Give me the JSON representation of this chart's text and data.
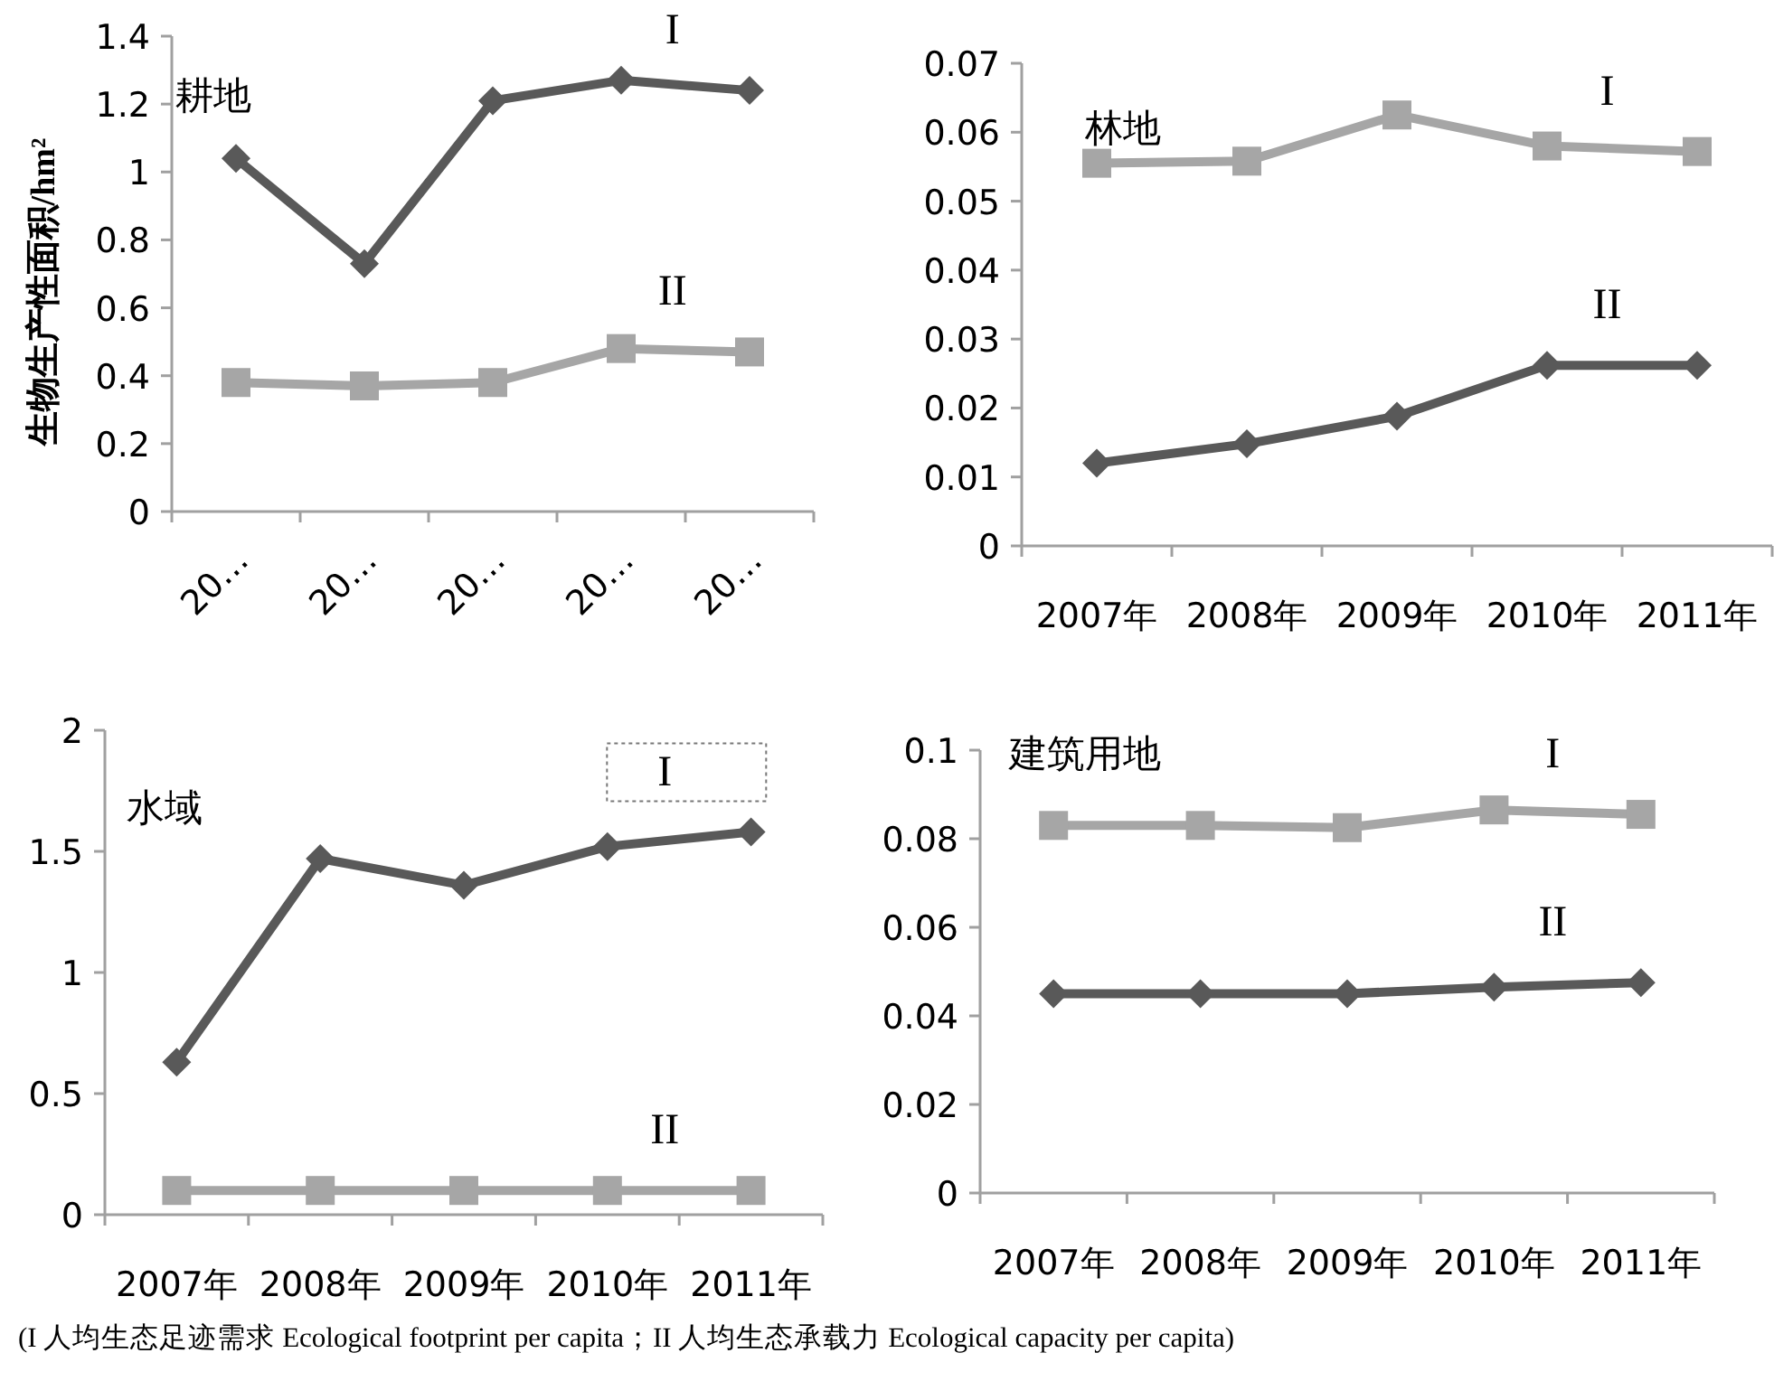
{
  "chart_data": [
    {
      "type": "line",
      "title": "耕地",
      "ylabel": "生物生产性面积/hm²",
      "categories": [
        "20…",
        "20…",
        "20…",
        "20…",
        "20…"
      ],
      "ylim": [
        0,
        1.4
      ],
      "yticks": [
        0,
        0.2,
        0.4,
        0.6,
        0.8,
        1,
        1.2,
        1.4
      ],
      "grid": false,
      "line_style": "solid",
      "series": [
        {
          "name": "I",
          "color": "#595959",
          "marker": "diamond",
          "values": [
            1.04,
            0.73,
            1.21,
            1.27,
            1.24
          ]
        },
        {
          "name": "II",
          "color": "#a6a6a6",
          "marker": "square",
          "values": [
            0.38,
            0.37,
            0.38,
            0.48,
            0.47
          ]
        }
      ]
    },
    {
      "type": "line",
      "title": "林地",
      "categories": [
        "2007年",
        "2008年",
        "2009年",
        "2010年",
        "2011年"
      ],
      "ylim": [
        0,
        0.07
      ],
      "yticks": [
        0,
        0.01,
        0.02,
        0.03,
        0.04,
        0.05,
        0.06,
        0.07
      ],
      "grid": false,
      "line_style": "solid",
      "series": [
        {
          "name": "I",
          "color": "#a6a6a6",
          "marker": "square",
          "values": [
            0.0555,
            0.0558,
            0.0625,
            0.058,
            0.0572
          ]
        },
        {
          "name": "II",
          "color": "#595959",
          "marker": "diamond",
          "values": [
            0.012,
            0.0148,
            0.0188,
            0.0262,
            0.0262
          ]
        }
      ]
    },
    {
      "type": "line",
      "title": "水域",
      "categories": [
        "2007年",
        "2008年",
        "2009年",
        "2010年",
        "2011年"
      ],
      "ylim": [
        0,
        2
      ],
      "yticks": [
        0,
        0.5,
        1,
        1.5,
        2
      ],
      "grid": false,
      "line_style": "solid",
      "series": [
        {
          "name": "I",
          "color": "#595959",
          "marker": "diamond",
          "values": [
            0.63,
            1.47,
            1.36,
            1.52,
            1.58
          ]
        },
        {
          "name": "II",
          "color": "#a6a6a6",
          "marker": "square",
          "values": [
            0.1,
            0.1,
            0.1,
            0.1,
            0.1
          ]
        }
      ]
    },
    {
      "type": "line",
      "title": "建筑用地",
      "categories": [
        "2007年",
        "2008年",
        "2009年",
        "2010年",
        "2011年"
      ],
      "ylim": [
        0,
        0.1
      ],
      "yticks": [
        0,
        0.02,
        0.04,
        0.06,
        0.08,
        0.1
      ],
      "grid": false,
      "line_style": "solid",
      "series": [
        {
          "name": "I",
          "color": "#a6a6a6",
          "marker": "square",
          "values": [
            0.083,
            0.083,
            0.0825,
            0.0865,
            0.0855
          ]
        },
        {
          "name": "II",
          "color": "#595959",
          "marker": "diamond",
          "values": [
            0.045,
            0.045,
            0.045,
            0.0465,
            0.0475
          ]
        }
      ],
      "annotations": [
        "(I 人均生态足迹需求 Ecological footprint per capita；II 人均生态承载力 Ecological capacity per capita)"
      ]
    }
  ]
}
